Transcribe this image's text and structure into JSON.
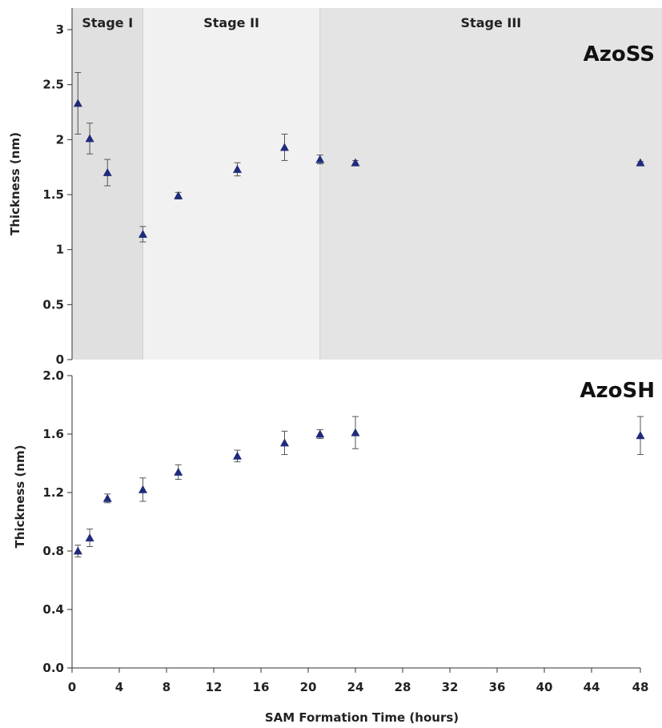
{
  "chart_data": [
    {
      "type": "scatter",
      "panel_label": "AzoSS",
      "ylabel": "Thickness (nm)",
      "ylim": [
        0,
        3
      ],
      "yticks": [
        "0",
        "0.5",
        "1",
        "1.5",
        "2",
        "2.5",
        "3"
      ],
      "grid": false,
      "stages": [
        {
          "label": "Stage I",
          "x_start": 0,
          "x_end": 6
        },
        {
          "label": "Stage II",
          "x_start": 6,
          "x_end": 21
        },
        {
          "label": "Stage III",
          "x_start": 21,
          "x_end": 48
        }
      ],
      "stage_colors": [
        "#e0e0e0",
        "#f1f1f1",
        "#e4e4e4"
      ],
      "series": [
        {
          "x": [
            "0.5",
            "1.5",
            "3",
            "6",
            "9",
            "14",
            "18",
            "21",
            "24",
            "48"
          ],
          "y": [
            2.33,
            2.01,
            1.7,
            1.14,
            1.49,
            1.73,
            1.93,
            1.82,
            1.79,
            1.79
          ],
          "err": [
            0.28,
            0.14,
            0.12,
            0.07,
            0.03,
            0.06,
            0.12,
            0.04,
            0.02,
            0.01
          ]
        }
      ]
    },
    {
      "type": "scatter",
      "panel_label": "AzoSH",
      "ylabel": "Thickness (nm)",
      "xlabel": "SAM Formation Time (hours)",
      "ylim": [
        0,
        2
      ],
      "yticks": [
        "0.0",
        "0.4",
        "0.8",
        "1.2",
        "1.6",
        "2.0"
      ],
      "xticks": [
        "0",
        "4",
        "8",
        "12",
        "16",
        "20",
        "24",
        "28",
        "32",
        "36",
        "40",
        "44",
        "48"
      ],
      "grid": false,
      "series": [
        {
          "x": [
            "0.5",
            "1.5",
            "3",
            "6",
            "9",
            "14",
            "18",
            "21",
            "24",
            "48"
          ],
          "y": [
            0.8,
            0.89,
            1.16,
            1.22,
            1.34,
            1.45,
            1.54,
            1.6,
            1.61,
            1.59
          ],
          "err": [
            0.04,
            0.06,
            0.03,
            0.08,
            0.05,
            0.04,
            0.08,
            0.03,
            0.11,
            0.13
          ]
        }
      ]
    }
  ],
  "colors": {
    "marker": "#1f2b7a",
    "errorbar": "#555555",
    "axis": "#333333"
  }
}
